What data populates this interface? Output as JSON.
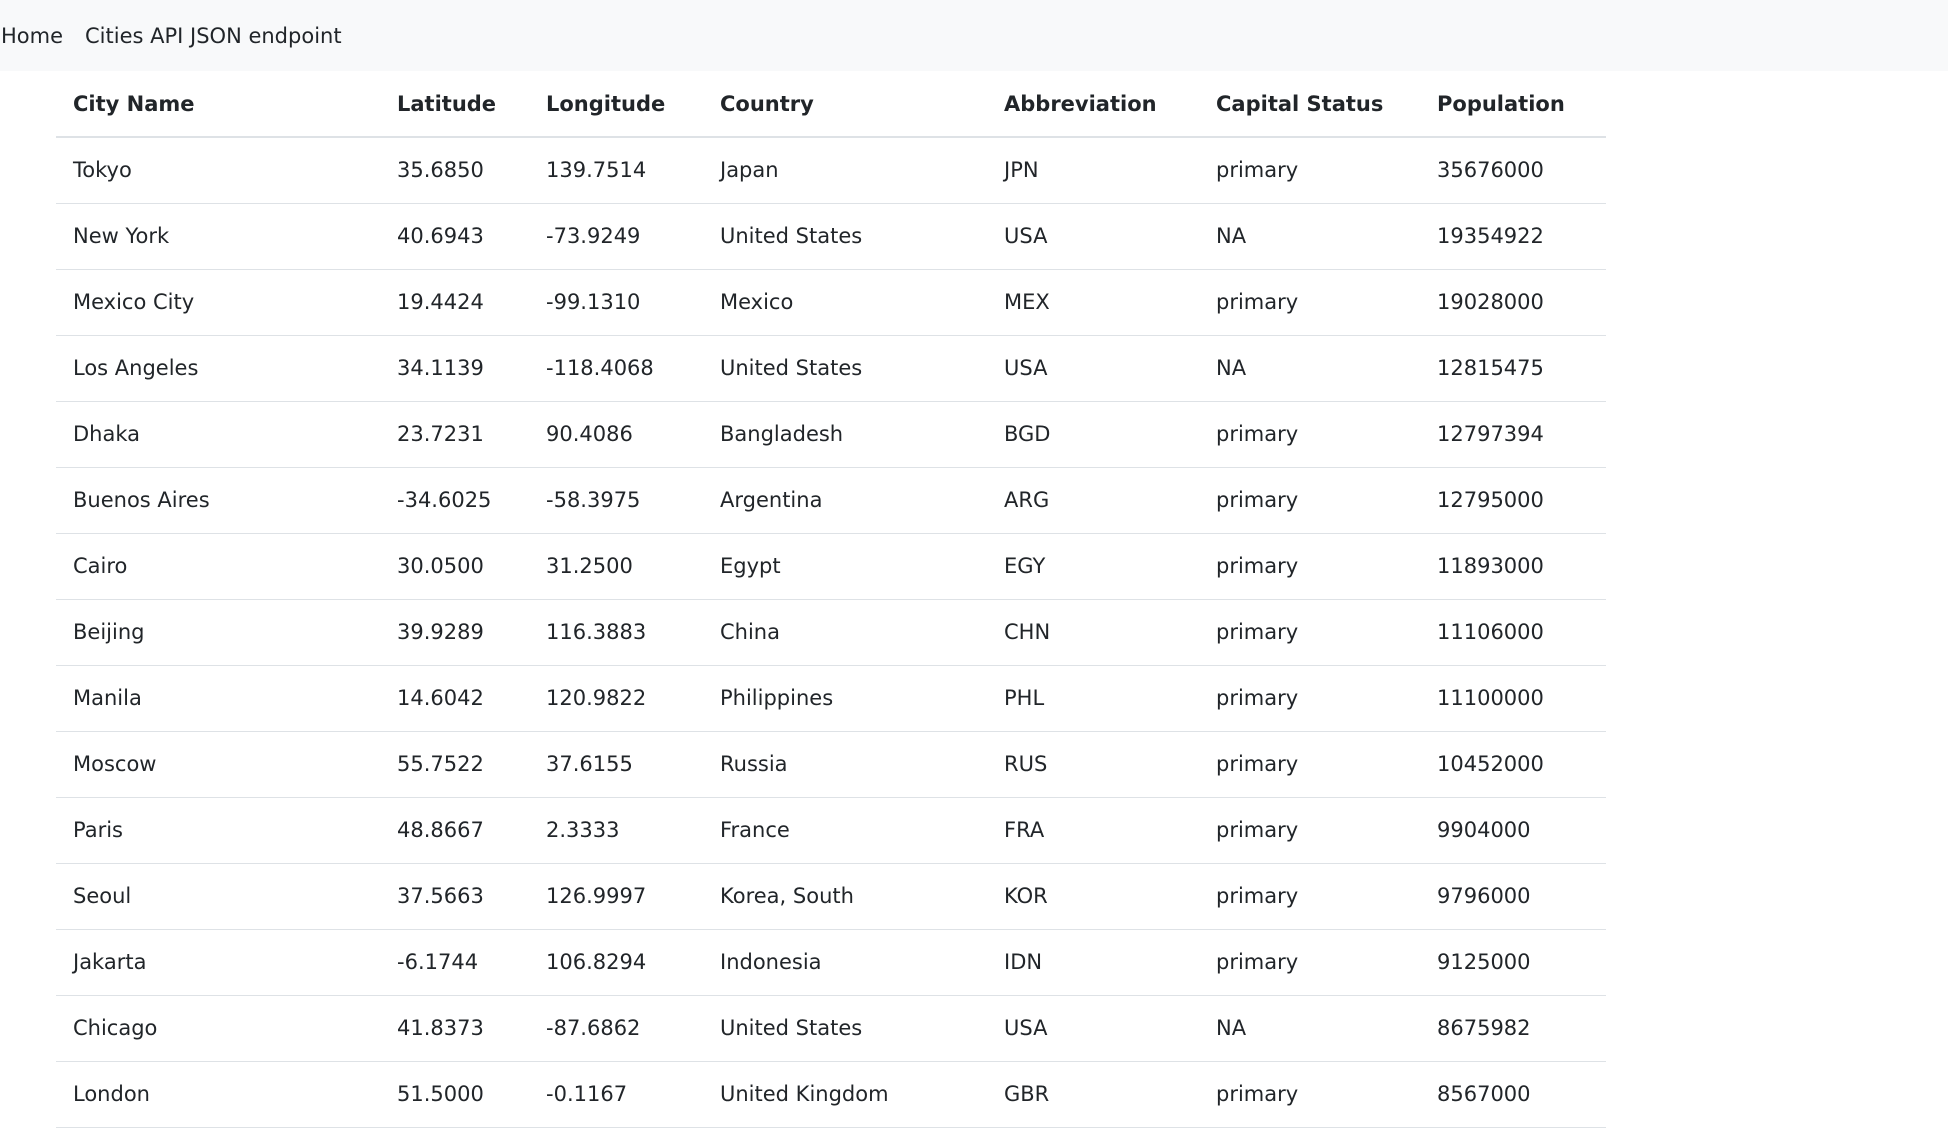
{
  "nav": {
    "home": "Home",
    "cities_api": "Cities API JSON endpoint"
  },
  "table": {
    "headers": [
      "City Name",
      "Latitude",
      "Longitude",
      "Country",
      "Abbreviation",
      "Capital Status",
      "Population"
    ],
    "rows": [
      [
        "Tokyo",
        "35.6850",
        "139.7514",
        "Japan",
        "JPN",
        "primary",
        "35676000"
      ],
      [
        "New York",
        "40.6943",
        "-73.9249",
        "United States",
        "USA",
        "NA",
        "19354922"
      ],
      [
        "Mexico City",
        "19.4424",
        "-99.1310",
        "Mexico",
        "MEX",
        "primary",
        "19028000"
      ],
      [
        "Los Angeles",
        "34.1139",
        "-118.4068",
        "United States",
        "USA",
        "NA",
        "12815475"
      ],
      [
        "Dhaka",
        "23.7231",
        "90.4086",
        "Bangladesh",
        "BGD",
        "primary",
        "12797394"
      ],
      [
        "Buenos Aires",
        "-34.6025",
        "-58.3975",
        "Argentina",
        "ARG",
        "primary",
        "12795000"
      ],
      [
        "Cairo",
        "30.0500",
        "31.2500",
        "Egypt",
        "EGY",
        "primary",
        "11893000"
      ],
      [
        "Beijing",
        "39.9289",
        "116.3883",
        "China",
        "CHN",
        "primary",
        "11106000"
      ],
      [
        "Manila",
        "14.6042",
        "120.9822",
        "Philippines",
        "PHL",
        "primary",
        "11100000"
      ],
      [
        "Moscow",
        "55.7522",
        "37.6155",
        "Russia",
        "RUS",
        "primary",
        "10452000"
      ],
      [
        "Paris",
        "48.8667",
        "2.3333",
        "France",
        "FRA",
        "primary",
        "9904000"
      ],
      [
        "Seoul",
        "37.5663",
        "126.9997",
        "Korea, South",
        "KOR",
        "primary",
        "9796000"
      ],
      [
        "Jakarta",
        "-6.1744",
        "106.8294",
        "Indonesia",
        "IDN",
        "primary",
        "9125000"
      ],
      [
        "Chicago",
        "41.8373",
        "-87.6862",
        "United States",
        "USA",
        "NA",
        "8675982"
      ],
      [
        "London",
        "51.5000",
        "-0.1167",
        "United Kingdom",
        "GBR",
        "primary",
        "8567000"
      ]
    ]
  }
}
